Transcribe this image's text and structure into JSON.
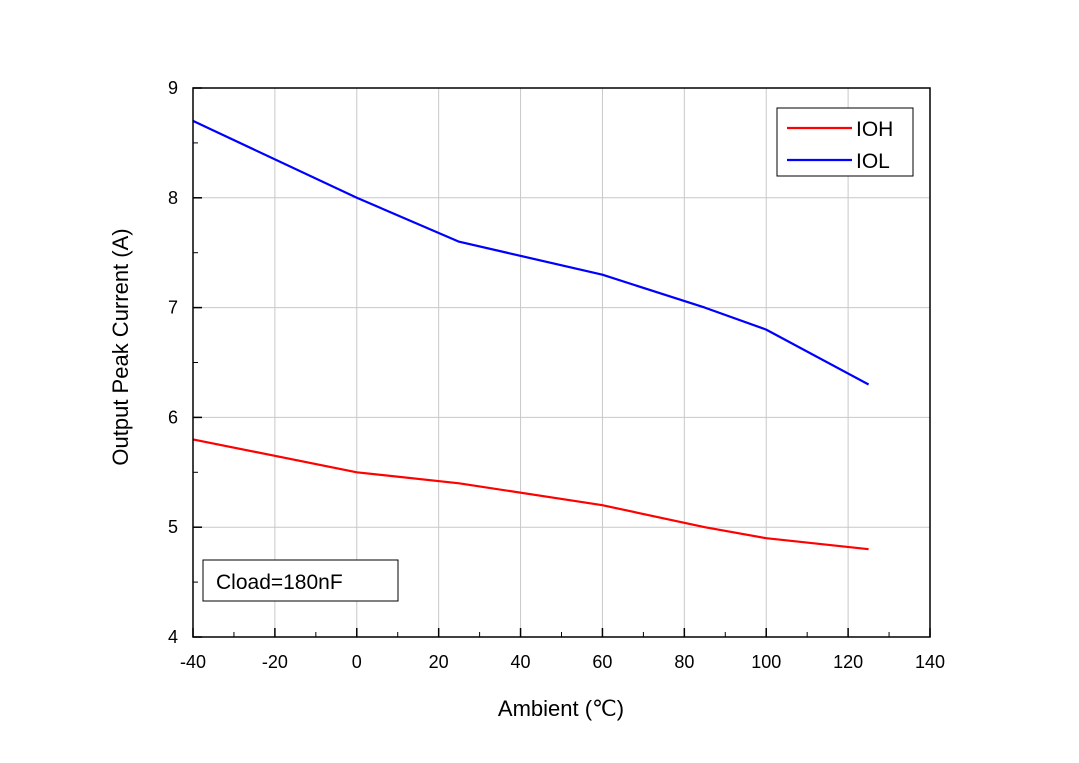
{
  "chart_data": {
    "type": "line",
    "title": "",
    "xlabel": "Ambient (℃)",
    "ylabel": "Output Peak Current (A)",
    "xlim": [
      -40,
      140
    ],
    "ylim": [
      4,
      9
    ],
    "x_ticks": [
      -40,
      -20,
      0,
      20,
      40,
      60,
      80,
      100,
      120,
      140
    ],
    "y_ticks": [
      4,
      5,
      6,
      7,
      8,
      9
    ],
    "grid": true,
    "legend_position": "top-right",
    "series": [
      {
        "name": "IOH",
        "color": "#ff0000",
        "x": [
          -40,
          0,
          25,
          60,
          85,
          100,
          125
        ],
        "y": [
          5.8,
          5.5,
          5.4,
          5.2,
          5.0,
          4.9,
          4.8
        ]
      },
      {
        "name": "IOL",
        "color": "#0000ff",
        "x": [
          -40,
          0,
          25,
          60,
          85,
          100,
          125
        ],
        "y": [
          8.7,
          8.0,
          7.6,
          7.3,
          7.0,
          6.8,
          6.3
        ]
      }
    ],
    "annotation": "Cload=180nF"
  }
}
